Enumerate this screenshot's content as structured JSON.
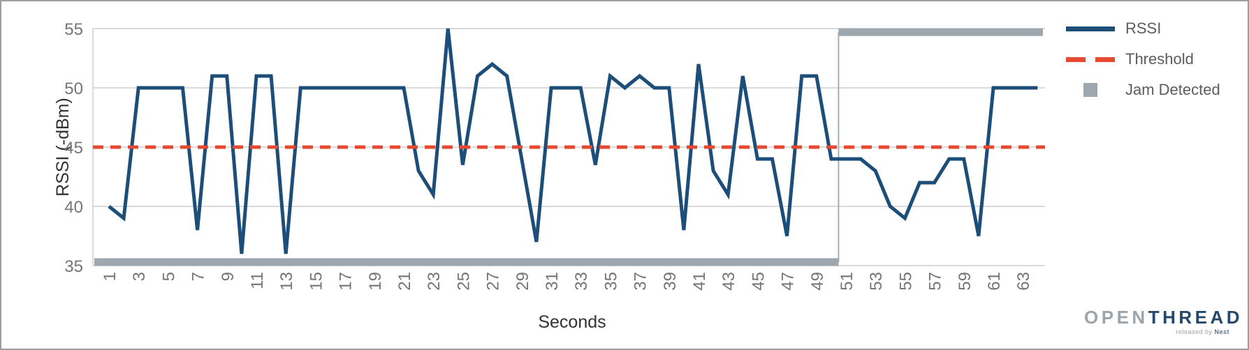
{
  "axes": {
    "y_title": "RSSI (-dBm)",
    "x_title": "Seconds",
    "y_tick_labels": [
      "55",
      "50",
      "45",
      "40",
      "35"
    ],
    "x_tick_labels": [
      "1",
      "3",
      "5",
      "7",
      "9",
      "11",
      "13",
      "15",
      "17",
      "19",
      "21",
      "23",
      "25",
      "27",
      "29",
      "31",
      "33",
      "35",
      "37",
      "39",
      "41",
      "43",
      "45",
      "47",
      "49",
      "51",
      "53",
      "55",
      "57",
      "59",
      "61",
      "63"
    ]
  },
  "legend": {
    "items": [
      {
        "label": "RSSI",
        "type": "line",
        "color": "#1C4E79"
      },
      {
        "label": "Threshold",
        "type": "dashed",
        "color": "#E5492F"
      },
      {
        "label": "Jam Detected",
        "type": "square",
        "color": "#9EA7AD"
      }
    ]
  },
  "logo": {
    "part1": "OPEN",
    "part2": "THREAD",
    "tagline_prefix": "released by ",
    "tagline_brand": "Nest"
  },
  "chart_data": {
    "type": "line",
    "xlabel": "Seconds",
    "ylabel": "RSSI (-dBm)",
    "xlim": [
      1,
      64
    ],
    "ylim": [
      35,
      55
    ],
    "grid": "horizontal",
    "legend_position": "right",
    "y_ticks": [
      55,
      50,
      45,
      40,
      35
    ],
    "x_ticks_labeled_odd_seconds": [
      1,
      3,
      5,
      7,
      9,
      11,
      13,
      15,
      17,
      19,
      21,
      23,
      25,
      27,
      29,
      31,
      33,
      35,
      37,
      39,
      41,
      43,
      45,
      47,
      49,
      51,
      53,
      55,
      57,
      59,
      61,
      63
    ],
    "series": [
      {
        "name": "RSSI",
        "color": "#1C4E79",
        "x_start_second": 1,
        "values": [
          40,
          39,
          50,
          50,
          50,
          50,
          38,
          51,
          51,
          36,
          51,
          51,
          36,
          50,
          50,
          50,
          50,
          50,
          50,
          50,
          50,
          43,
          41,
          55,
          43.5,
          51,
          52,
          51,
          44,
          37,
          50,
          50,
          50,
          43.5,
          51,
          50,
          51,
          50,
          50,
          38,
          52,
          43,
          41,
          51,
          44,
          44,
          37.5,
          51,
          51,
          44,
          44,
          44,
          43,
          40,
          39,
          42,
          42,
          44,
          44,
          37.5,
          50,
          50,
          50,
          50
        ]
      },
      {
        "name": "Threshold",
        "color": "#E5492F",
        "style": "dashed",
        "value": 45
      },
      {
        "name": "Jam Detected",
        "color": "#9EA7AD",
        "style": "thick-step",
        "low_value": 35.3,
        "high_value": 54.7,
        "low_until_second": 50,
        "high_from_second": 51
      }
    ]
  }
}
